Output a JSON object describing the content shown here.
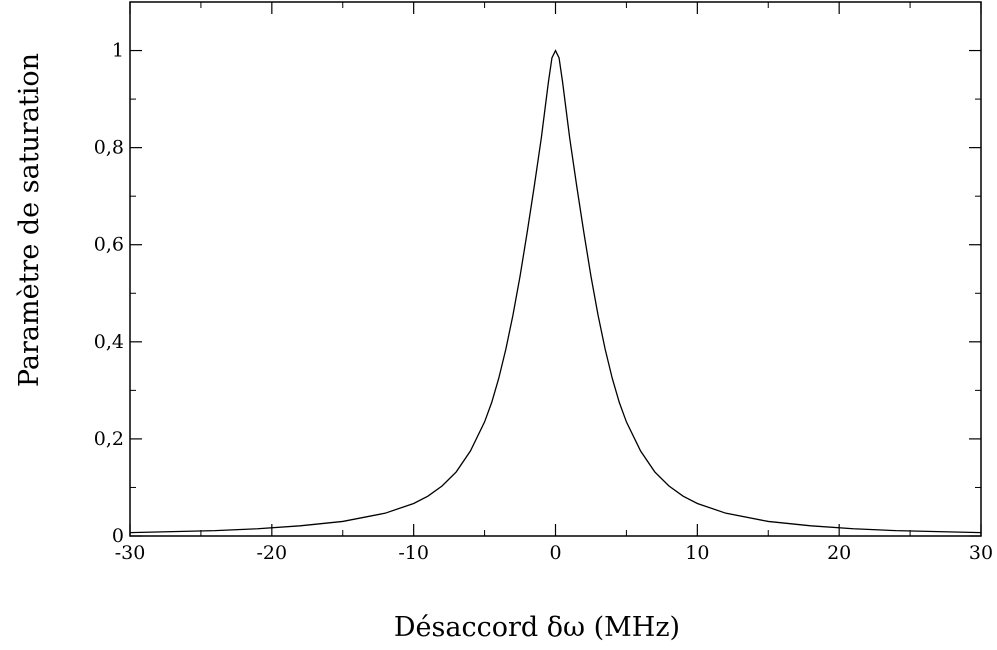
{
  "chart_data": {
    "type": "line",
    "title": "",
    "xlabel": "Désaccord δω (MHz)",
    "ylabel": "Paramètre de saturation",
    "xlim": [
      -30,
      30
    ],
    "ylim": [
      0,
      1.1
    ],
    "x_ticks": [
      -30,
      -20,
      -10,
      0,
      10,
      20,
      30
    ],
    "x_tick_labels": [
      "-30",
      "-20",
      "-10",
      "0",
      "10",
      "20",
      "30"
    ],
    "y_ticks": [
      0,
      0.2,
      0.4,
      0.6,
      0.8,
      1.0
    ],
    "y_tick_labels": [
      "0",
      "0,2",
      "0,4",
      "0,6",
      "0,8",
      "1"
    ],
    "grid": false,
    "legend": "none",
    "line_color": "#000000",
    "series": [
      {
        "x": [
          -30,
          -27,
          -24,
          -21,
          -18,
          -15,
          -12,
          -10,
          -9,
          -8,
          -7,
          -6,
          -5,
          -4.5,
          -4,
          -3.5,
          -3,
          -2.5,
          -2,
          -1.5,
          -1,
          -0.5,
          -0.25,
          0,
          0.25,
          0.5,
          1,
          1.5,
          2,
          2.5,
          3,
          3.5,
          4,
          4.5,
          5,
          6,
          7,
          8,
          9,
          10,
          12,
          15,
          18,
          21,
          24,
          27,
          30
        ],
        "values": [
          0.007,
          0.009,
          0.011,
          0.015,
          0.021,
          0.03,
          0.047,
          0.067,
          0.082,
          0.103,
          0.132,
          0.175,
          0.235,
          0.275,
          0.325,
          0.385,
          0.455,
          0.535,
          0.625,
          0.72,
          0.82,
          0.935,
          0.985,
          1.0,
          0.985,
          0.935,
          0.82,
          0.72,
          0.625,
          0.535,
          0.455,
          0.385,
          0.325,
          0.275,
          0.235,
          0.175,
          0.132,
          0.103,
          0.082,
          0.067,
          0.047,
          0.03,
          0.021,
          0.015,
          0.011,
          0.009,
          0.007
        ]
      }
    ]
  }
}
